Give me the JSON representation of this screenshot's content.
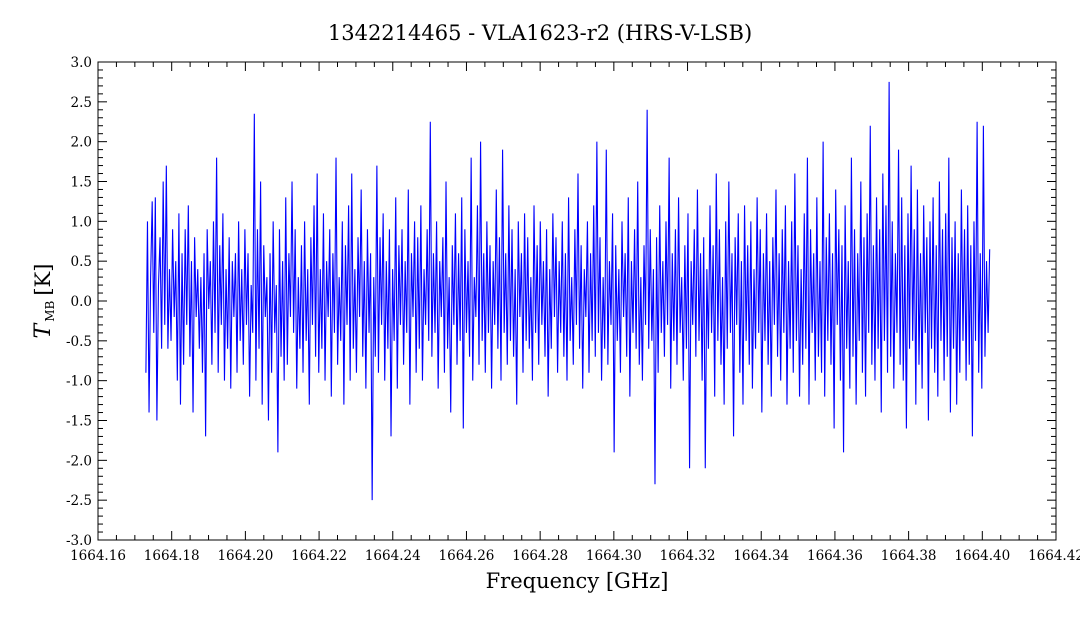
{
  "chart_data": {
    "type": "line",
    "title": "1342214465 - VLA1623-r2 (HRS-V-LSB)",
    "xlabel": "Frequency [GHz]",
    "ylabel": {
      "symbol": "T",
      "subscript": "MB",
      "unit": "[K]"
    },
    "xlim": [
      1664.16,
      1664.42
    ],
    "ylim": [
      -3.0,
      3.0
    ],
    "x_ticks": [
      "1664.16",
      "1664.18",
      "1664.20",
      "1664.22",
      "1664.24",
      "1664.26",
      "1664.28",
      "1664.30",
      "1664.32",
      "1664.34",
      "1664.36",
      "1664.38",
      "1664.40",
      "1664.42"
    ],
    "y_ticks": [
      "3.0",
      "2.5",
      "2.0",
      "1.5",
      "1.0",
      "0.5",
      "0.0",
      "-0.5",
      "-1.0",
      "-1.5",
      "-2.0",
      "-2.5",
      "-3.0"
    ],
    "grid": false,
    "series": [
      {
        "color": "#0000ff",
        "x_start": 1664.173,
        "x_end": 1664.402,
        "values": [
          -0.9,
          1.0,
          -1.4,
          0.3,
          1.25,
          -0.4,
          1.3,
          -1.5,
          0.2,
          0.8,
          -0.6,
          1.5,
          -0.3,
          1.7,
          -0.6,
          0.4,
          -0.5,
          0.9,
          -0.2,
          0.5,
          -1.0,
          1.1,
          -1.3,
          0.6,
          -0.8,
          0.9,
          -0.3,
          1.2,
          -0.7,
          0.5,
          -1.4,
          0.8,
          -0.2,
          0.4,
          -0.6,
          0.3,
          -0.9,
          0.6,
          -1.7,
          0.9,
          -0.1,
          0.5,
          -0.8,
          1.0,
          -0.4,
          1.8,
          -0.9,
          0.7,
          -0.3,
          1.1,
          -1.0,
          0.4,
          -0.6,
          0.8,
          -1.1,
          0.5,
          -0.2,
          0.6,
          -0.9,
          1.0,
          -0.5,
          0.4,
          -0.8,
          0.9,
          -0.3,
          0.6,
          -1.2,
          0.2,
          -0.4,
          2.35,
          -1.0,
          0.9,
          -0.6,
          1.5,
          -1.3,
          0.7,
          -0.2,
          0.3,
          -1.5,
          0.6,
          -0.9,
          1.0,
          -0.4,
          0.2,
          -1.9,
          0.9,
          -0.7,
          0.5,
          -1.0,
          1.3,
          -0.8,
          0.6,
          -0.2,
          1.5,
          -0.4,
          0.9,
          -1.1,
          0.3,
          -0.6,
          0.7,
          -0.9,
          1.0,
          -0.5,
          0.4,
          -1.3,
          0.8,
          -0.3,
          1.2,
          -0.7,
          1.6,
          -0.9,
          0.4,
          -0.6,
          1.1,
          -1.0,
          0.5,
          -0.2,
          0.9,
          -1.2,
          0.6,
          -0.4,
          1.8,
          -0.8,
          0.3,
          -0.5,
          1.0,
          -1.3,
          0.7,
          -0.3,
          1.2,
          -1.0,
          1.6,
          -0.6,
          0.4,
          -0.9,
          0.8,
          -0.2,
          1.4,
          -0.7,
          0.5,
          -1.1,
          0.9,
          -0.4,
          0.6,
          -2.5,
          0.3,
          -0.7,
          1.7,
          -0.9,
          0.8,
          -0.3,
          1.1,
          -1.0,
          0.5,
          -0.6,
          0.9,
          -1.7,
          0.4,
          -0.5,
          1.3,
          -1.1,
          0.7,
          -0.3,
          0.9,
          -0.8,
          0.5,
          -0.4,
          1.4,
          -1.3,
          0.6,
          -0.2,
          1.0,
          -0.9,
          0.8,
          -0.6,
          1.2,
          -1.0,
          0.4,
          -0.3,
          0.9,
          -0.5,
          2.25,
          -0.7,
          0.6,
          -0.4,
          1.0,
          -1.1,
          0.5,
          -0.2,
          0.8,
          -0.9,
          1.5,
          -0.6,
          0.3,
          -1.4,
          0.7,
          -0.3,
          1.1,
          -0.8,
          0.6,
          -0.5,
          1.3,
          -1.6,
          0.9,
          -0.4,
          0.5,
          -0.7,
          1.8,
          -1.0,
          0.3,
          -0.2,
          1.2,
          -0.8,
          2.0,
          -0.5,
          0.6,
          -0.9,
          1.0,
          -0.4,
          0.7,
          -1.1,
          0.5,
          -0.3,
          1.4,
          -0.6,
          0.8,
          -1.0,
          1.9,
          -0.4,
          0.6,
          -0.8,
          1.2,
          -0.5,
          0.9,
          -0.7,
          0.4,
          -1.3,
          1.0,
          -0.2,
          0.6,
          -0.9,
          1.1,
          -0.5,
          0.8,
          -0.6,
          0.3,
          -1.0,
          1.2,
          -0.4,
          0.7,
          -0.8,
          1.0,
          -0.3,
          0.5,
          -0.7,
          0.9,
          -1.2,
          0.4,
          -0.6,
          1.1,
          -0.2,
          0.8,
          -0.9,
          0.5,
          -0.4,
          1.0,
          -0.7,
          0.6,
          -1.0,
          1.3,
          -0.5,
          0.3,
          -0.8,
          0.9,
          -0.3,
          1.6,
          -0.6,
          0.7,
          -1.1,
          0.4,
          -0.2,
          1.0,
          -0.9,
          0.6,
          -0.5,
          1.2,
          -0.7,
          2.0,
          -0.4,
          0.8,
          -1.0,
          0.3,
          -0.6,
          1.9,
          -0.8,
          0.5,
          -0.3,
          1.1,
          -1.9,
          0.7,
          -0.5,
          0.4,
          -0.9,
          1.0,
          -0.2,
          0.6,
          -0.7,
          1.3,
          -1.2,
          0.5,
          -0.4,
          0.9,
          -0.6,
          1.5,
          -0.8,
          0.3,
          -1.0,
          0.7,
          -0.3,
          2.4,
          -0.6,
          0.9,
          -0.5,
          0.4,
          -2.3,
          0.8,
          -0.9,
          1.2,
          -0.4,
          0.5,
          -0.7,
          1.0,
          -0.3,
          1.8,
          -1.1,
          0.6,
          -0.5,
          0.9,
          -0.8,
          1.3,
          -0.4,
          0.3,
          -1.0,
          0.7,
          -0.6,
          1.1,
          -2.1,
          0.5,
          -0.3,
          0.9,
          -0.7,
          1.4,
          -0.5,
          0.6,
          -1.0,
          0.8,
          -2.1,
          0.4,
          -0.6,
          1.2,
          -0.4,
          0.7,
          -1.2,
          1.6,
          -0.5,
          0.9,
          -0.8,
          0.3,
          -1.3,
          1.0,
          -0.6,
          1.5,
          -0.4,
          0.6,
          -1.7,
          0.8,
          -0.3,
          1.1,
          -0.9,
          0.5,
          -1.3,
          1.2,
          -0.5,
          0.7,
          -0.8,
          1.0,
          -1.1,
          0.4,
          -0.6,
          1.3,
          -0.4,
          0.9,
          -1.4,
          0.6,
          -0.5,
          1.1,
          -0.8,
          0.5,
          -1.2,
          0.8,
          -0.3,
          1.4,
          -0.7,
          0.6,
          -1.0,
          0.9,
          -0.4,
          1.2,
          -1.3,
          0.5,
          -0.6,
          1.0,
          -0.9,
          1.6,
          -0.5,
          0.7,
          -1.2,
          0.4,
          -0.8,
          1.1,
          -0.6,
          1.8,
          -1.3,
          0.9,
          -0.4,
          0.6,
          -1.0,
          1.3,
          -0.7,
          0.5,
          -0.9,
          2.0,
          -1.2,
          0.8,
          -0.5,
          1.1,
          -0.8,
          0.6,
          -1.6,
          1.4,
          -0.3,
          0.9,
          -1.0,
          0.7,
          -1.9,
          1.2,
          -0.6,
          0.5,
          -1.1,
          1.8,
          -0.7,
          0.9,
          -1.3,
          0.6,
          -0.5,
          1.5,
          -0.9,
          0.8,
          -1.2,
          1.1,
          -0.4,
          2.2,
          -0.8,
          0.7,
          -1.0,
          1.3,
          -0.6,
          0.9,
          -1.4,
          1.6,
          -0.5,
          1.2,
          -0.9,
          2.75,
          -0.7,
          1.0,
          -1.1,
          0.6,
          -0.4,
          1.9,
          -0.8,
          1.3,
          -1.0,
          0.7,
          -1.6,
          1.1,
          -0.6,
          1.7,
          -0.5,
          0.9,
          -1.3,
          1.4,
          -0.8,
          0.6,
          -1.1,
          1.2,
          -0.4,
          0.8,
          -1.5,
          1.0,
          -0.6,
          1.3,
          -0.9,
          0.7,
          -1.2,
          1.5,
          -0.5,
          0.9,
          -1.0,
          1.1,
          -0.7,
          1.8,
          -1.4,
          0.8,
          -0.6,
          1.0,
          -1.3,
          0.6,
          -0.9,
          1.4,
          -0.5,
          0.9,
          -1.0,
          1.2,
          -0.8,
          0.7,
          -1.7,
          1.0,
          -0.5,
          2.25,
          -0.9,
          0.6,
          -1.1,
          2.2,
          -0.7,
          0.5,
          -0.4,
          0.65
        ]
      }
    ]
  }
}
